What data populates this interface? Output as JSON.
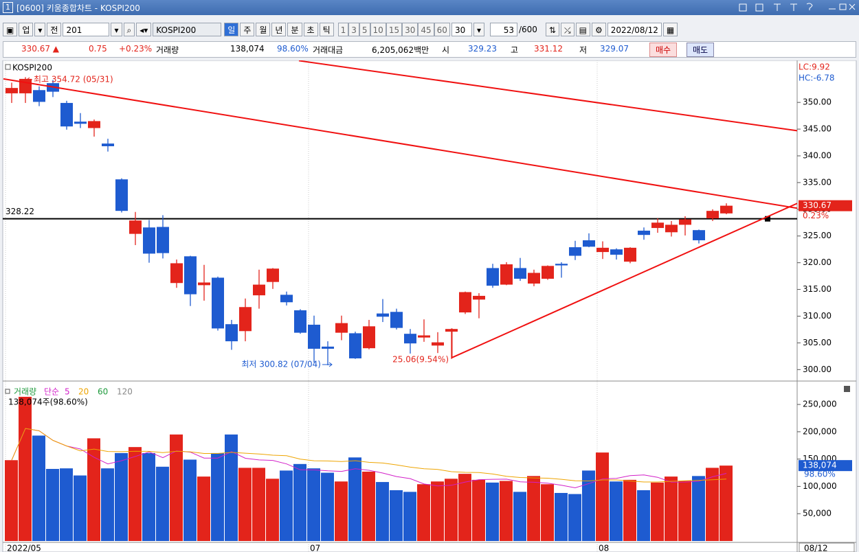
{
  "window": {
    "number": "1",
    "title": "[0600] 키움종합차트 - KOSPI200"
  },
  "toolbar": {
    "market": "업",
    "all": "전",
    "code": "201",
    "name": "KOSPI200",
    "periods": [
      "일",
      "주",
      "월",
      "년",
      "분",
      "초",
      "틱"
    ],
    "intervals": [
      "1",
      "3",
      "5",
      "10",
      "15",
      "30",
      "45",
      "60"
    ],
    "interval_value": "30",
    "count": "53",
    "count_max": "/600",
    "date": "2022/08/12"
  },
  "info": {
    "price": "330.67 ▲",
    "change": "0.75",
    "change_pct": "+0.23%",
    "volume_label": "거래량",
    "volume": "138,074",
    "volume_pct": "98.60%",
    "amount_label": "거래대금",
    "amount": "6,205,062백만",
    "open_label": "시",
    "open": "329.23",
    "high_label": "고",
    "high": "331.12",
    "low_label": "저",
    "low": "329.07",
    "buy": "매수",
    "sell": "매도"
  },
  "chart_data": [
    {
      "type": "candlestick",
      "title": "KOSPI200",
      "categories": [
        "2022/05",
        null,
        null,
        null,
        null,
        null,
        null,
        null,
        null,
        null,
        null,
        null,
        null,
        null,
        null,
        null,
        null,
        null,
        null,
        null,
        null,
        null,
        "07",
        null,
        null,
        null,
        null,
        null,
        null,
        null,
        null,
        null,
        null,
        null,
        null,
        null,
        null,
        null,
        null,
        null,
        null,
        null,
        null,
        "08",
        null,
        null,
        null,
        null,
        null,
        null,
        null,
        null,
        "08/12"
      ],
      "open": [
        351.7,
        351.7,
        352.3,
        353.6,
        349.9,
        346.4,
        345.2,
        342.3,
        335.6,
        325.4,
        326.6,
        326.7,
        316.2,
        321.2,
        315.8,
        317.2,
        308.5,
        307.2,
        313.9,
        316.4,
        314.0,
        311.1,
        308.4,
        304.3,
        306.9,
        306.8,
        304.0,
        310.5,
        310.8,
        306.7,
        306.0,
        304.5,
        307.1,
        310.7,
        313.1,
        319.0,
        315.9,
        319.0,
        316.1,
        317.0,
        319.8,
        322.9,
        324.2,
        322.0,
        322.5,
        320.2,
        326.0,
        326.5,
        325.7,
        327.1,
        326.1,
        328.3,
        329.23
      ],
      "high": [
        353.7,
        354.72,
        353.0,
        354.2,
        350.3,
        348.0,
        346.8,
        343.2,
        335.8,
        329.5,
        328.0,
        328.9,
        320.6,
        321.3,
        319.6,
        317.4,
        309.3,
        313.3,
        318.7,
        319.0,
        314.6,
        311.3,
        310.1,
        305.3,
        310.1,
        307.1,
        309.3,
        313.2,
        311.4,
        307.6,
        309.4,
        307.0,
        307.7,
        314.6,
        314.3,
        319.8,
        320.1,
        320.9,
        318.7,
        319.5,
        320.1,
        324.1,
        325.5,
        324.0,
        322.7,
        322.9,
        326.6,
        328.3,
        327.8,
        328.7,
        326.2,
        330.0,
        331.12
      ],
      "low": [
        349.9,
        349.9,
        349.3,
        351.0,
        344.9,
        345.2,
        343.6,
        340.8,
        329.4,
        323.3,
        320.0,
        320.8,
        315.3,
        311.9,
        312.9,
        307.3,
        303.7,
        305.3,
        311.4,
        315.1,
        312.0,
        306.7,
        301.3,
        300.82,
        305.5,
        302.0,
        303.8,
        308.9,
        307.5,
        303.0,
        305.2,
        303.1,
        302.0,
        310.4,
        309.6,
        315.3,
        315.8,
        316.6,
        315.6,
        316.8,
        317.2,
        320.5,
        322.9,
        320.7,
        320.6,
        319.9,
        324.3,
        325.6,
        324.9,
        325.1,
        323.6,
        327.8,
        329.07
      ],
      "close": [
        352.7,
        354.4,
        350.1,
        352.0,
        345.5,
        346.0,
        346.5,
        341.8,
        329.7,
        327.9,
        321.7,
        321.8,
        319.9,
        314.1,
        316.3,
        307.7,
        305.3,
        311.7,
        315.9,
        318.9,
        312.6,
        306.9,
        303.9,
        303.9,
        308.7,
        302.1,
        308.1,
        309.9,
        307.8,
        304.9,
        306.4,
        305.1,
        307.6,
        314.5,
        313.8,
        315.7,
        319.7,
        317.0,
        318.1,
        319.4,
        319.5,
        321.3,
        323.0,
        322.8,
        321.5,
        322.8,
        325.2,
        327.5,
        327.1,
        328.1,
        324.2,
        329.7,
        330.67
      ],
      "up_color": "#e3241b",
      "down_color": "#1e5bd0",
      "ylim": [
        298.5,
        357.6
      ],
      "yticks": [
        {
          "value": 300,
          "label": "300.00"
        },
        {
          "value": 305,
          "label": "305.00"
        },
        {
          "value": 310,
          "label": "310.00"
        },
        {
          "value": 315,
          "label": "315.00"
        },
        {
          "value": 320,
          "label": "320.00"
        },
        {
          "value": 325,
          "label": "325.00"
        },
        {
          "value": 330,
          "label": "330.00"
        },
        {
          "value": 335,
          "label": "335.00"
        },
        {
          "value": 340,
          "label": "340.00"
        },
        {
          "value": 345,
          "label": "345.00"
        },
        {
          "value": 350,
          "label": "350.00"
        }
      ],
      "hline": 328.22,
      "trend_color": "#f01010",
      "trendlines": [
        {
          "x": [
            -0.6,
            57.15
          ],
          "values": [
            354.4,
            330.2
          ]
        },
        {
          "x": [
            20.9,
            57.15
          ],
          "values": [
            357.8,
            344.7
          ]
        },
        {
          "x": [
            32,
            57.15
          ],
          "values": [
            302.2,
            331.1
          ]
        }
      ],
      "high_label": "최고 354.72 (05/31)",
      "low_label": "최저 300.82 (07/04)",
      "range_label": "25.06(9.54%)",
      "lc_label": "LC:9.92",
      "hc_label": "HC:-6.78",
      "last_change_label": "0.23%"
    },
    {
      "type": "bar",
      "title": "거래량",
      "ma_label": "단순",
      "ma": [
        {
          "period": 5,
          "color": "#d21fc8"
        },
        {
          "period": 20,
          "color": "#eea400"
        },
        {
          "period": 60,
          "color": "#1e9a3c"
        },
        {
          "period": 120,
          "color": "#888888"
        }
      ],
      "subtitle": "138,074주(98.60%)",
      "values": [
        148000,
        264000,
        193000,
        132000,
        133000,
        120000,
        188000,
        133000,
        161000,
        172000,
        161000,
        136000,
        195000,
        149000,
        118000,
        161000,
        195000,
        134000,
        134000,
        114000,
        129000,
        141000,
        133000,
        125000,
        109000,
        153000,
        127000,
        108000,
        93000,
        90000,
        104000,
        109000,
        114000,
        123000,
        112000,
        107000,
        110000,
        90000,
        119000,
        104000,
        88000,
        86000,
        129000,
        162000,
        109000,
        112000,
        93000,
        107000,
        118000,
        110000,
        119000,
        134000,
        138074
      ],
      "ylim": [
        0,
        274000
      ],
      "yticks": [
        {
          "value": 50000,
          "label": "50,000"
        },
        {
          "value": 100000,
          "label": "100,000"
        },
        {
          "value": 150000,
          "label": "150,000"
        },
        {
          "value": 200000,
          "label": "200,000"
        },
        {
          "value": 250000,
          "label": "250,000"
        }
      ],
      "last_label": "138,074",
      "last_pct_label": "98.60%"
    }
  ]
}
